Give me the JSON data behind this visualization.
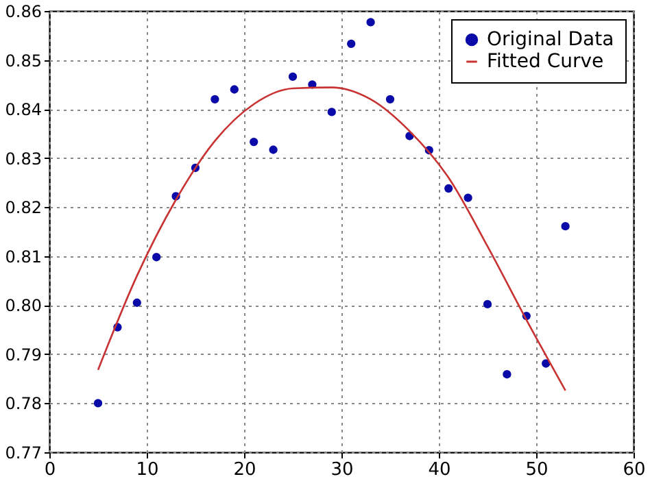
{
  "chart_data": {
    "type": "scatter",
    "xlim": [
      0,
      60
    ],
    "xticks": [
      0,
      10,
      20,
      30,
      40,
      50,
      60
    ],
    "ylim": [
      0.77,
      0.86
    ],
    "yticks": [
      {
        "value": 0.77,
        "label": "0.77"
      },
      {
        "value": 0.78,
        "label": "0.78"
      },
      {
        "value": 0.79,
        "label": "0.79"
      },
      {
        "value": 0.8,
        "label": "0.80"
      },
      {
        "value": 0.81,
        "label": "0.81"
      },
      {
        "value": 0.82,
        "label": "0.82"
      },
      {
        "value": 0.83,
        "label": "0.83"
      },
      {
        "value": 0.84,
        "label": "0.84"
      },
      {
        "value": 0.85,
        "label": "0.85"
      },
      {
        "value": 0.86,
        "label": "0.86"
      }
    ],
    "grid": true,
    "legend": "top right",
    "series": [
      {
        "name": "Original Data",
        "type": "scatter",
        "marker": "circle",
        "color": "#0a0aa8",
        "x": [
          5,
          7,
          9,
          11,
          13,
          15,
          17,
          19,
          21,
          23,
          25,
          27,
          29,
          31,
          33,
          35,
          37,
          39,
          41,
          43,
          45,
          47,
          49,
          51,
          53
        ],
        "values": [
          0.78,
          0.7955,
          0.8005,
          0.8098,
          0.8222,
          0.828,
          0.842,
          0.844,
          0.8333,
          0.8317,
          0.8466,
          0.845,
          0.8394,
          0.8533,
          0.8577,
          0.842,
          0.8345,
          0.8316,
          0.8238,
          0.8219,
          0.8002,
          0.7859,
          0.7978,
          0.7881,
          0.8161
        ]
      },
      {
        "name": "Fitted Curve",
        "type": "line",
        "line_style": "solid",
        "color": "#c83232",
        "x": [
          5,
          9,
          13,
          17,
          21,
          25,
          29,
          33,
          37,
          41,
          45,
          49,
          53
        ],
        "values": [
          0.7868,
          0.806,
          0.8215,
          0.8335,
          0.841,
          0.8442,
          0.8444,
          0.842,
          0.8355,
          0.826,
          0.812,
          0.797,
          0.7826
        ]
      }
    ]
  }
}
